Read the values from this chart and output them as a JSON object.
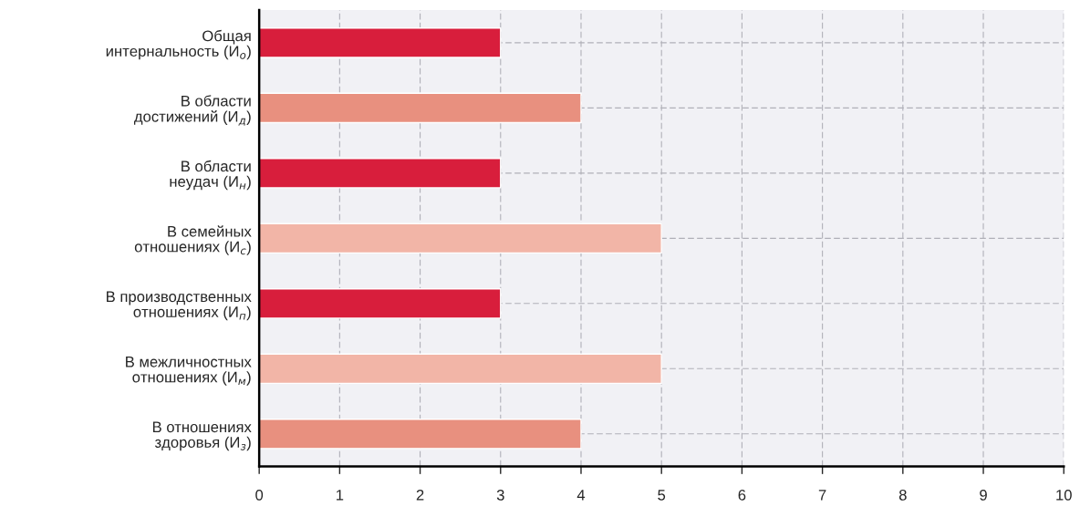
{
  "chart_data": {
    "type": "bar",
    "orientation": "horizontal",
    "categories": [
      "Общая\nинтернальность (И$_{о}$)",
      "В области\nдостижений (И$_{д}$)",
      "В области\nнеудач (И$_{н}$)",
      "В семейных\nотношениях (И$_{с}$)",
      "В производственных\nотношениях (И$_{п}$)",
      "В межличностных\nотношениях (И$_{м}$)",
      "В отношениях\nздоровья (И$_{з}$)"
    ],
    "values": [
      3,
      4,
      3,
      5,
      3,
      5,
      4
    ],
    "colors": [
      "#d81e3c",
      "#e8907f",
      "#d81e3c",
      "#f2b5a7",
      "#d81e3c",
      "#f2b5a7",
      "#e8907f"
    ],
    "xlim": [
      0,
      10
    ],
    "xticks": [
      0,
      1,
      2,
      3,
      4,
      5,
      6,
      7,
      8,
      9,
      10
    ],
    "grid": true
  }
}
